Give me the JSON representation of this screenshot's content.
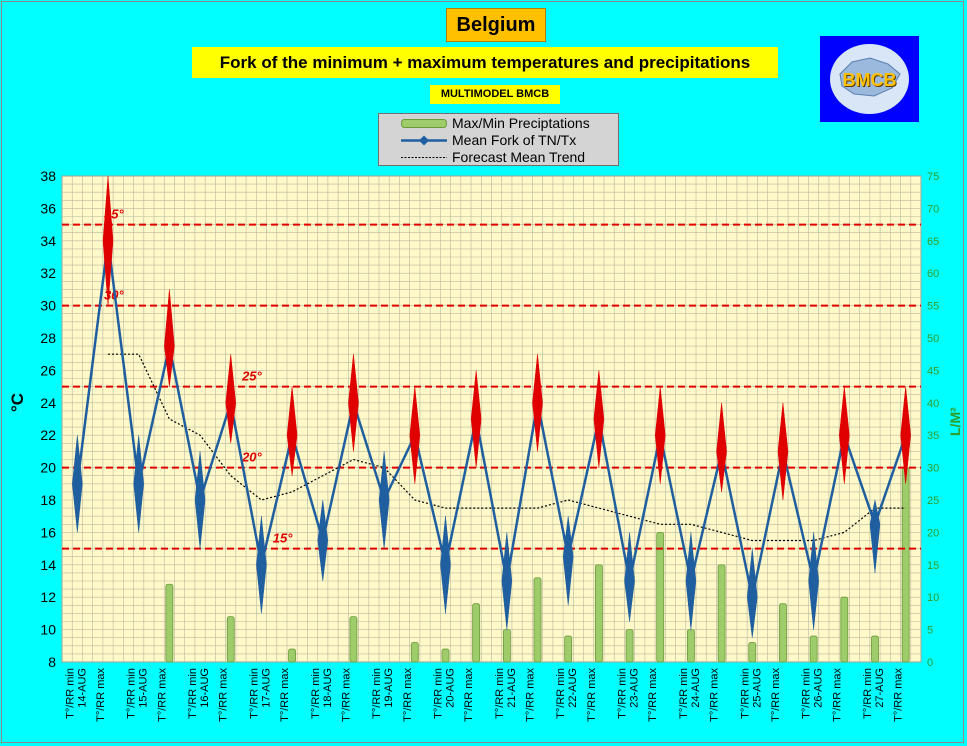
{
  "title": "Belgium",
  "subtitle": "Fork of the minimum + maximum temperatures and precipitations",
  "model_label": "MULTIMODEL BMCB",
  "logo_text": "BMCB",
  "legend": [
    {
      "label": "Max/Min Preciptations",
      "kind": "bar",
      "color": "#8fbf5a"
    },
    {
      "label": "Mean Fork of TN/Tx",
      "kind": "line-marker",
      "color": "#1f5f9f"
    },
    {
      "label": "Forecast Mean Trend",
      "kind": "dotted",
      "color": "#000000"
    }
  ],
  "colors": {
    "background": "#00FFFF",
    "plot_bg": "#FFF8C8",
    "temp_line": "#1f5f9f",
    "temp_marker_high": "#e00000",
    "temp_marker_low": "#1f5f9f",
    "precip": "#9fcc6a",
    "threshold": "#e00000",
    "right_axis": "#2e9e2e"
  },
  "chart_data": {
    "type": "line",
    "xlabel": "",
    "ylabel": "°C",
    "ylabel_right": "L/M²",
    "ylim": [
      8,
      38
    ],
    "yticks": [
      8,
      10,
      12,
      14,
      16,
      18,
      20,
      22,
      24,
      26,
      28,
      30,
      32,
      34,
      36,
      38
    ],
    "ylim_right": [
      0,
      75
    ],
    "yticks_right": [
      0,
      5,
      10,
      15,
      20,
      25,
      30,
      35,
      40,
      45,
      50,
      55,
      60,
      65,
      70,
      75
    ],
    "grid": true,
    "categories": [
      "T°/RR min 14-AUG",
      "T°/RR max",
      "T°/RR min 15-AUG",
      "T°/RR max",
      "T°/RR min 16-AUG",
      "T°/RR max",
      "T°/RR min 17-AUG",
      "T°/RR max",
      "T°/RR min 18-AUG",
      "T°/RR max",
      "T°/RR min 19-AUG",
      "T°/RR max",
      "T°/RR min 20-AUG",
      "T°/RR max",
      "T°/RR min 21-AUG",
      "T°/RR max",
      "T°/RR min 22-AUG",
      "T°/RR max",
      "T°/RR min 23-AUG",
      "T°/RR max",
      "T°/RR min 24-AUG",
      "T°/RR max",
      "T°/RR min 25-AUG",
      "T°/RR max",
      "T°/RR min 26-AUG",
      "T°/RR max",
      "T°/RR min 27-AUG",
      "T°/RR max"
    ],
    "tick_labels": [
      {
        "line1": "T°/RR min",
        "line2": "14-AUG"
      },
      {
        "line1": "T°/RR max",
        "line2": ""
      },
      {
        "line1": "T°/RR min",
        "line2": "15-AUG"
      },
      {
        "line1": "T°/RR max",
        "line2": ""
      },
      {
        "line1": "T°/RR min",
        "line2": "16-AUG"
      },
      {
        "line1": "T°/RR max",
        "line2": ""
      },
      {
        "line1": "T°/RR min",
        "line2": "17-AUG"
      },
      {
        "line1": "T°/RR max",
        "line2": ""
      },
      {
        "line1": "T°/RR min",
        "line2": "18-AUG"
      },
      {
        "line1": "T°/RR max",
        "line2": ""
      },
      {
        "line1": "T°/RR min",
        "line2": "19-AUG"
      },
      {
        "line1": "T°/RR max",
        "line2": ""
      },
      {
        "line1": "T°/RR min",
        "line2": "20-AUG"
      },
      {
        "line1": "T°/RR max",
        "line2": ""
      },
      {
        "line1": "T°/RR min",
        "line2": "21-AUG"
      },
      {
        "line1": "T°/RR max",
        "line2": ""
      },
      {
        "line1": "T°/RR min",
        "line2": "22-AUG"
      },
      {
        "line1": "T°/RR max",
        "line2": ""
      },
      {
        "line1": "T°/RR min",
        "line2": "23-AUG"
      },
      {
        "line1": "T°/RR max",
        "line2": ""
      },
      {
        "line1": "T°/RR min",
        "line2": "24-AUG"
      },
      {
        "line1": "T°/RR max",
        "line2": ""
      },
      {
        "line1": "T°/RR min",
        "line2": "25-AUG"
      },
      {
        "line1": "T°/RR max",
        "line2": ""
      },
      {
        "line1": "T°/RR min",
        "line2": "26-AUG"
      },
      {
        "line1": "T°/RR max",
        "line2": ""
      },
      {
        "line1": "T°/RR min",
        "line2": "27-AUG"
      },
      {
        "line1": "T°/RR max",
        "line2": ""
      }
    ],
    "series": [
      {
        "name": "Mean Fork of TN/Tx",
        "values": [
          19,
          34,
          19,
          27.5,
          18,
          24,
          14,
          22,
          15.5,
          24,
          18,
          22,
          14,
          23,
          13,
          24,
          14.5,
          23,
          13,
          22,
          13,
          21,
          12,
          21,
          13,
          22,
          16.5,
          22
        ],
        "fork_min": [
          16,
          30,
          16,
          25,
          15,
          21.5,
          11,
          19.5,
          13,
          21,
          15,
          19,
          11,
          20,
          10,
          21,
          11.5,
          20,
          10.5,
          19,
          10,
          18.5,
          9.5,
          18,
          10,
          19,
          13.5,
          19
        ],
        "fork_max": [
          22,
          38,
          22,
          31,
          21,
          27,
          17,
          25,
          18,
          27,
          21,
          25,
          17,
          26,
          16,
          27,
          17,
          26,
          16,
          25,
          16,
          24,
          15,
          24,
          16,
          25,
          18,
          25
        ]
      },
      {
        "name": "Forecast Mean Trend",
        "values": [
          null,
          27,
          27,
          23,
          22,
          19.5,
          18,
          18.5,
          19.5,
          20.5,
          20,
          18,
          17.5,
          17.5,
          17.5,
          17.5,
          18,
          17.5,
          17,
          16.5,
          16.5,
          16,
          15.5,
          15.5,
          15.5,
          16,
          17.5,
          17.5
        ]
      },
      {
        "name": "Max/Min Preciptations",
        "axis": "right",
        "values": [
          0,
          0,
          0,
          12,
          0,
          7,
          0,
          2,
          0,
          7,
          0,
          3,
          2,
          9,
          5,
          13,
          4,
          15,
          5,
          20,
          5,
          15,
          3,
          9,
          4,
          10,
          4,
          30
        ]
      }
    ],
    "thresholds": [
      {
        "value": 35,
        "label": "35°"
      },
      {
        "value": 30,
        "label": "30°"
      },
      {
        "value": 25,
        "label": "25°"
      },
      {
        "value": 20,
        "label": "20°"
      },
      {
        "value": 15,
        "label": "15°"
      }
    ]
  }
}
